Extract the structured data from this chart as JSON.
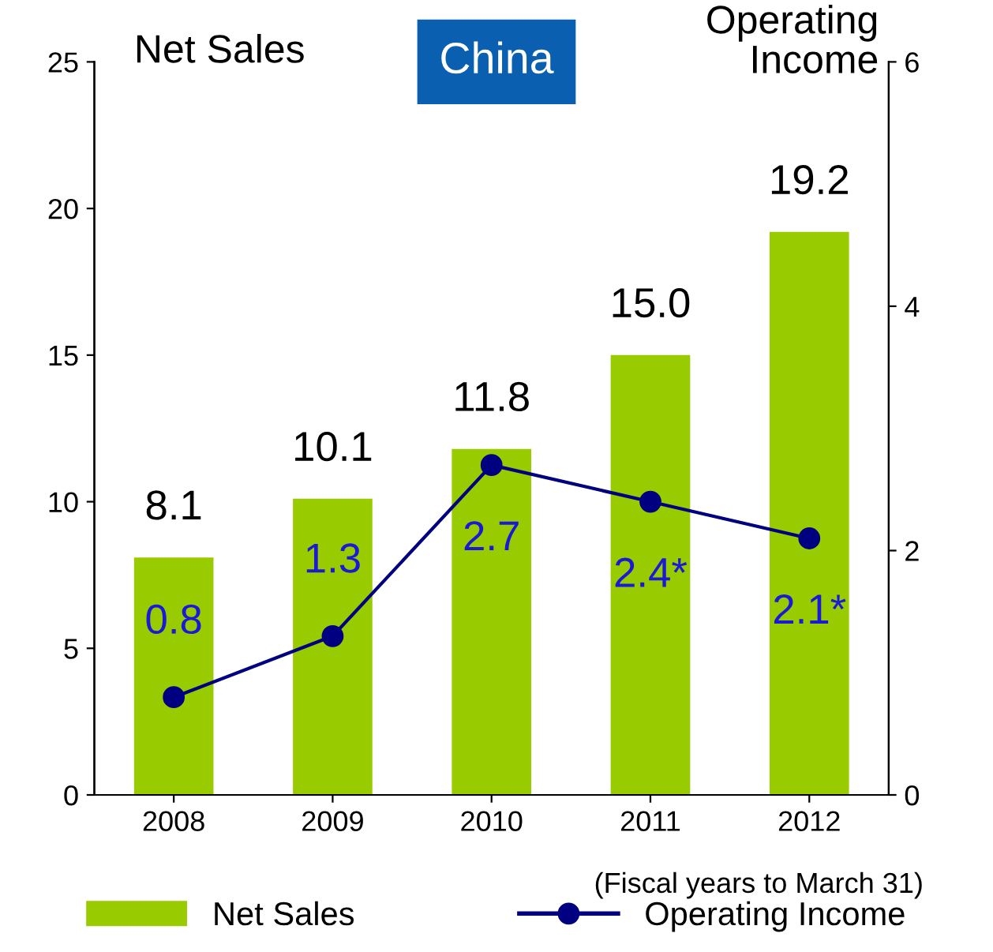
{
  "chart_data": {
    "type": "bar",
    "title": "China",
    "ylabel": "Net Sales",
    "y2label": "Operating\nIncome",
    "categories": [
      "2008",
      "2009",
      "2010",
      "2011",
      "2012"
    ],
    "series": [
      {
        "name": "Net Sales",
        "color": "#99cc00",
        "values": [
          8.1,
          10.1,
          11.8,
          15.0,
          19.2
        ],
        "value_labels": [
          "8.1",
          "10.1",
          "11.8",
          "15.0",
          "19.2"
        ]
      },
      {
        "name": "Operating Income",
        "type": "line",
        "axis": "y2",
        "color": "#000080",
        "marker": "circle",
        "values": [
          0.8,
          1.3,
          2.7,
          2.4,
          2.1
        ],
        "value_labels": [
          "0.8",
          "1.3",
          "2.7",
          "2.4*",
          "2.1*"
        ]
      }
    ],
    "ylim": [
      0,
      25
    ],
    "yticks": [
      0,
      5,
      10,
      15,
      20,
      25
    ],
    "y2lim": [
      0,
      6
    ],
    "y2ticks": [
      0,
      2,
      4,
      6
    ],
    "grid": false,
    "legend": "bottom",
    "annotations": [
      "(Fiscal years to March 31)"
    ]
  }
}
